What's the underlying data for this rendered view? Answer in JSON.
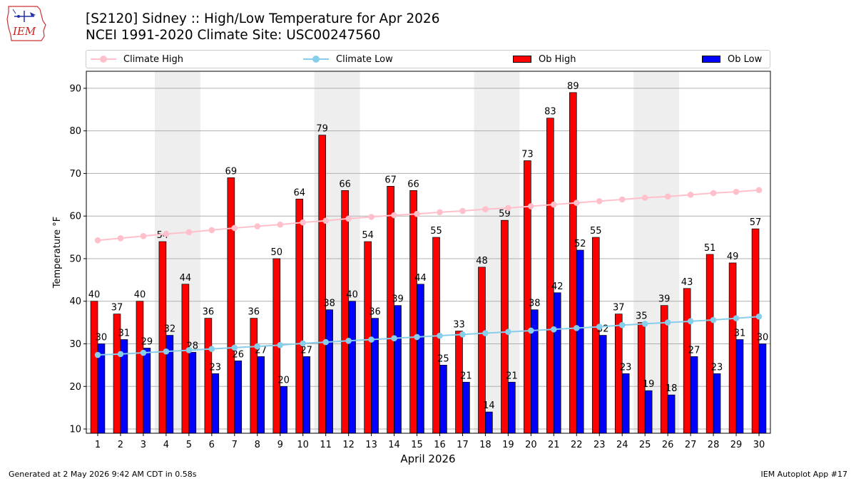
{
  "logo": {
    "text": "IEM"
  },
  "header": {
    "title_line1": "[S2120] Sidney :: High/Low Temperature for Apr 2026",
    "title_line2": "NCEI 1991-2020 Climate Site: USC00247560"
  },
  "legend": {
    "items": [
      {
        "label": "Climate High",
        "kind": "line",
        "color": "#ffc0cb"
      },
      {
        "label": "Climate Low",
        "kind": "line",
        "color": "#87ceeb"
      },
      {
        "label": "Ob High",
        "kind": "bar",
        "color": "#ff0000"
      },
      {
        "label": "Ob Low",
        "kind": "bar",
        "color": "#0000ff"
      }
    ]
  },
  "chart_data": {
    "type": "bar",
    "xlabel": "April 2026",
    "ylabel": "Temperature °F",
    "ylim": [
      9,
      94
    ],
    "yticks": [
      10,
      20,
      30,
      40,
      50,
      60,
      70,
      80,
      90
    ],
    "grid": true,
    "legend_position": "top",
    "weekend_shading": [
      [
        4,
        5
      ],
      [
        11,
        12
      ],
      [
        18,
        19
      ],
      [
        25,
        26
      ]
    ],
    "categories": [
      1,
      2,
      3,
      4,
      5,
      6,
      7,
      8,
      9,
      10,
      11,
      12,
      13,
      14,
      15,
      16,
      17,
      18,
      19,
      20,
      21,
      22,
      23,
      24,
      25,
      26,
      27,
      28,
      29,
      30
    ],
    "series": [
      {
        "name": "Ob High",
        "kind": "bar",
        "color": "#ff0000",
        "values": [
          40,
          37,
          40,
          54,
          44,
          36,
          69,
          36,
          50,
          64,
          79,
          66,
          54,
          67,
          66,
          55,
          33,
          48,
          59,
          73,
          83,
          89,
          55,
          37,
          35,
          39,
          43,
          51,
          49,
          57
        ]
      },
      {
        "name": "Ob Low",
        "kind": "bar",
        "color": "#0000ff",
        "values": [
          30,
          31,
          29,
          32,
          28,
          23,
          26,
          27,
          20,
          27,
          38,
          40,
          36,
          39,
          44,
          25,
          21,
          14,
          21,
          38,
          42,
          52,
          32,
          23,
          19,
          18,
          27,
          23,
          31,
          30
        ]
      },
      {
        "name": "Climate High",
        "kind": "line",
        "color": "#ffc0cb",
        "values": [
          54.3,
          54.8,
          55.3,
          55.8,
          56.2,
          56.7,
          57.2,
          57.6,
          58.0,
          58.5,
          58.9,
          59.4,
          59.8,
          60.2,
          60.5,
          60.9,
          61.2,
          61.6,
          61.9,
          62.3,
          62.7,
          63.1,
          63.5,
          63.9,
          64.3,
          64.6,
          65.0,
          65.4,
          65.7,
          66.1
        ]
      },
      {
        "name": "Climate Low",
        "kind": "line",
        "color": "#87ceeb",
        "values": [
          27.4,
          27.6,
          27.9,
          28.2,
          28.5,
          28.8,
          29.1,
          29.4,
          29.7,
          30.1,
          30.4,
          30.7,
          31.0,
          31.3,
          31.6,
          31.9,
          32.2,
          32.5,
          32.8,
          33.1,
          33.4,
          33.7,
          34.0,
          34.4,
          34.7,
          35.0,
          35.3,
          35.6,
          36.0,
          36.4
        ]
      }
    ]
  },
  "footer": {
    "left": "Generated at 2 May 2026 9:42 AM CDT in 0.58s",
    "right": "IEM Autoplot App #17"
  }
}
